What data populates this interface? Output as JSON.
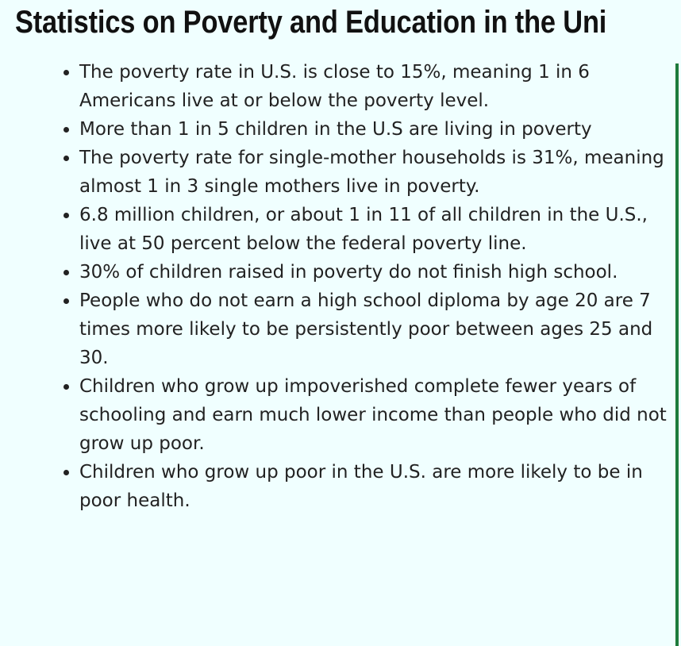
{
  "page": {
    "title": "Statistics on Poverty and Education in the Uni",
    "background_color": "#f0ffff",
    "border_color": "#1e7b3c"
  },
  "facts": [
    "The poverty rate in U.S. is close to 15%, meaning 1 in 6 Americans live at or below the poverty level.",
    "More than 1 in 5 children in the U.S are living in poverty",
    "The poverty rate for single-mother households is 31%, meaning almost 1 in 3 single mothers live in poverty.",
    "6.8 million children, or about 1 in 11 of all children in the U.S., live at 50 percent below the federal poverty line.",
    "30% of children raised in poverty do not finish high school.",
    "People who do not earn a high school diploma by age 20 are 7 times more likely to be persistently poor between ages 25 and 30.",
    "Children who grow up impoverished complete fewer years of schooling and earn much lower income than people who did not grow up poor.",
    "Children who grow up poor in the U.S. are more likely to be in poor health."
  ]
}
